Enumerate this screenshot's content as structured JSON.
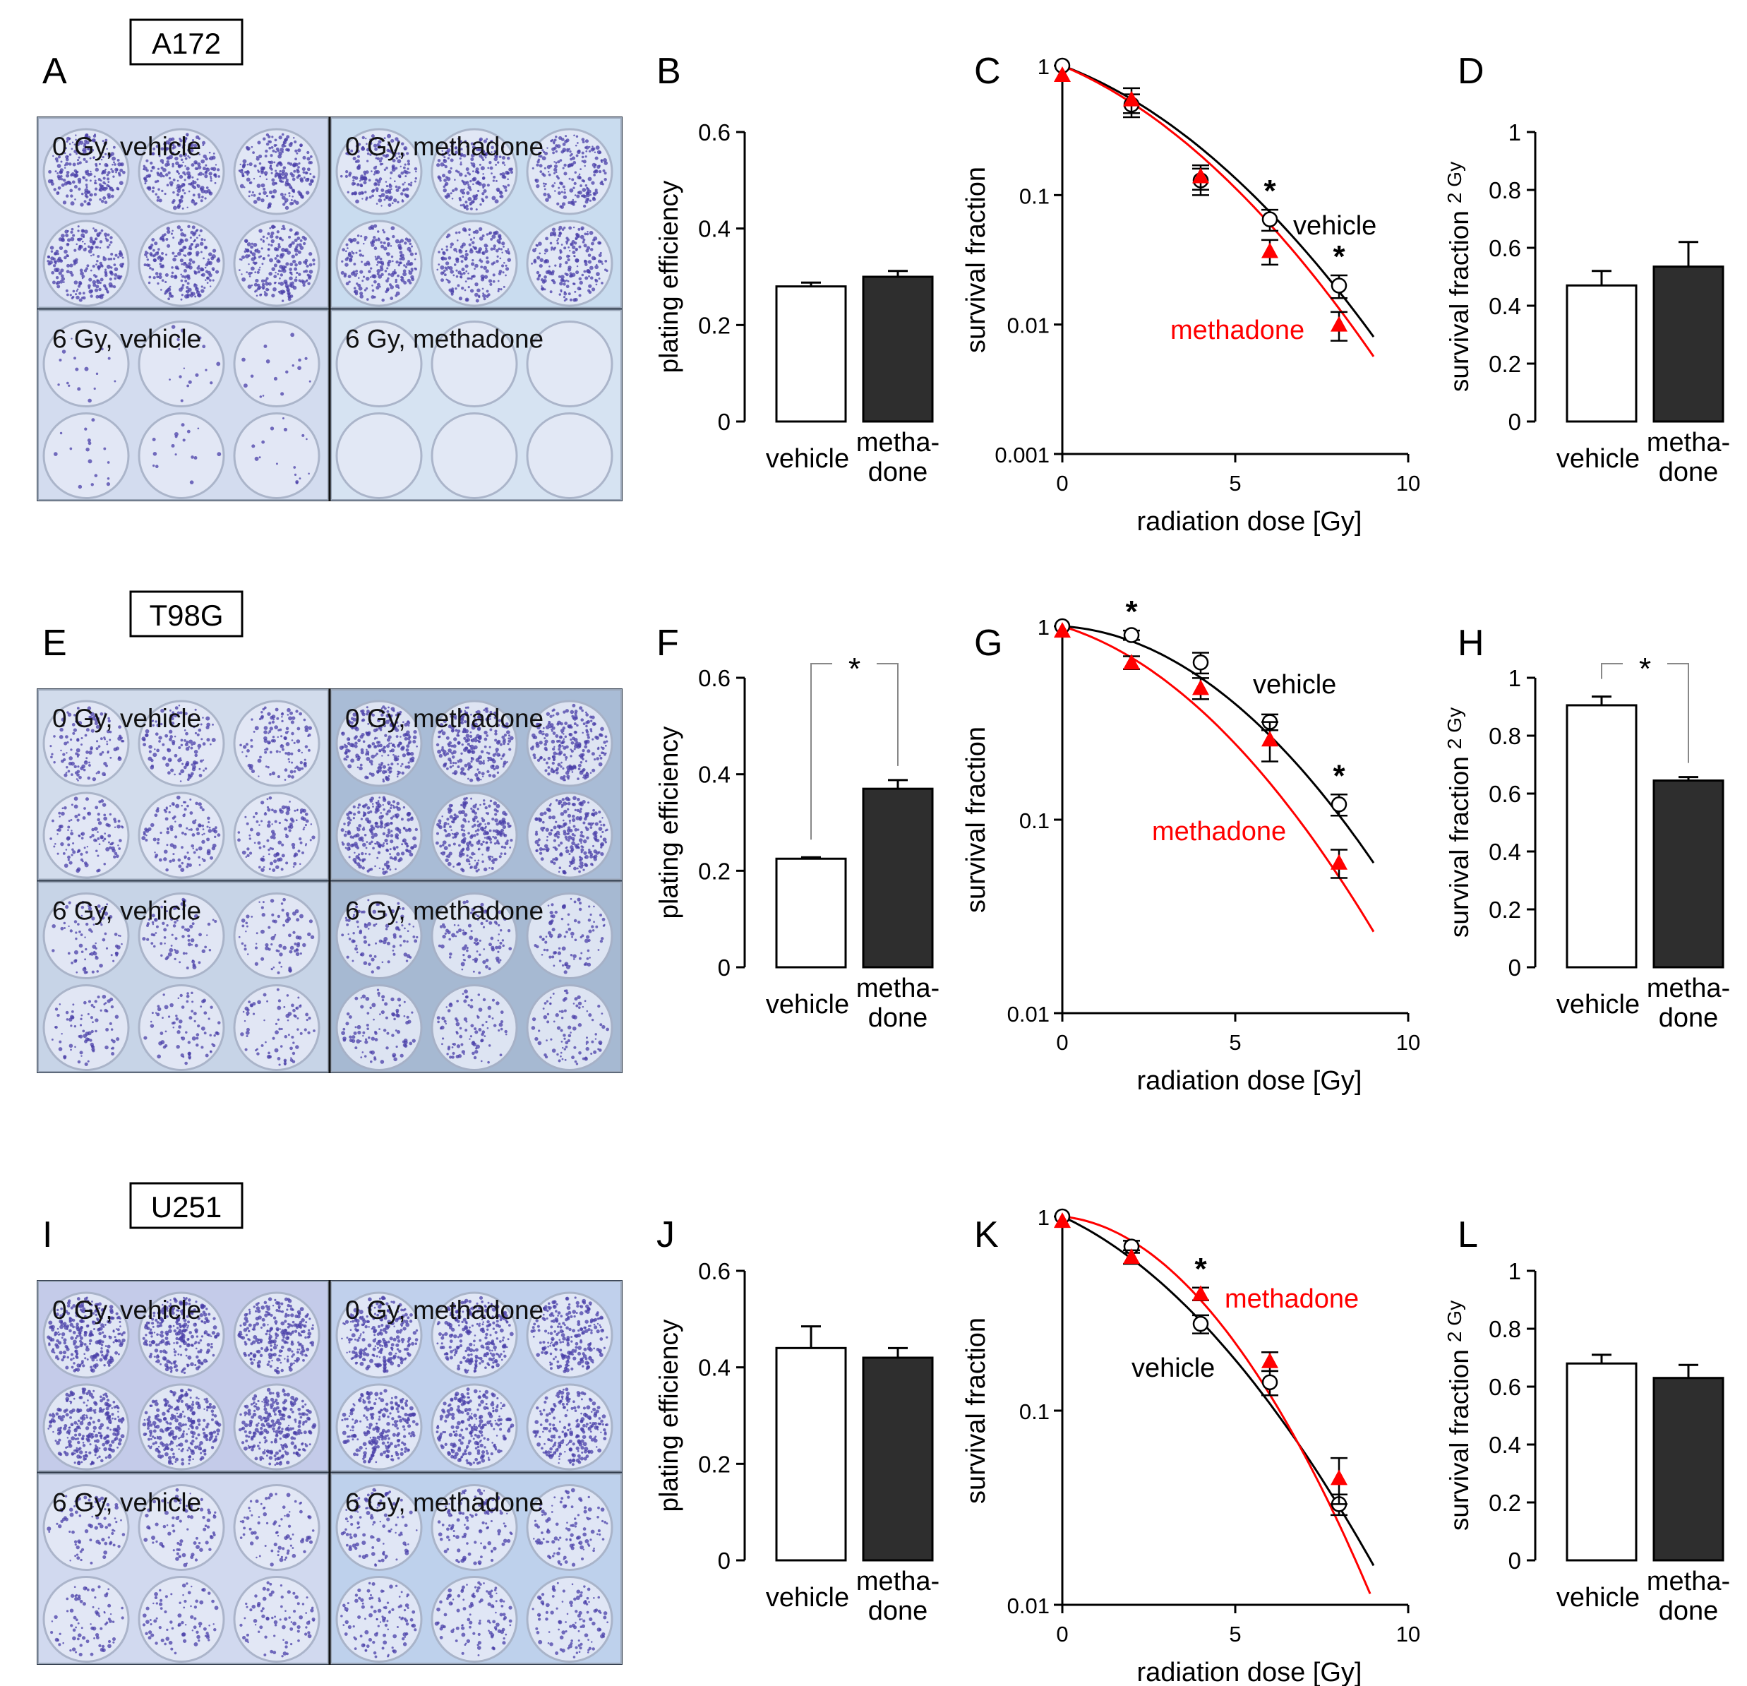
{
  "rows": [
    {
      "cell_line": "A172",
      "panel_letters": [
        "A",
        "B",
        "C",
        "D"
      ],
      "photo": {
        "labels": [
          "0 Gy, vehicle",
          "0 Gy, methadone",
          "6 Gy, vehicle",
          "6 Gy, methadone"
        ],
        "colony_density": [
          0.85,
          0.75,
          0.06,
          0.0
        ],
        "tint": [
          "#cfd8ee",
          "#c9dcef",
          "#d3dcef",
          "#d6e3f2"
        ]
      }
    },
    {
      "cell_line": "T98G",
      "panel_letters": [
        "E",
        "F",
        "G",
        "H"
      ],
      "photo": {
        "labels": [
          "0 Gy, vehicle",
          "0 Gy, methadone",
          "6 Gy, vehicle",
          "6 Gy, methadone"
        ],
        "colony_density": [
          0.45,
          0.9,
          0.3,
          0.35
        ],
        "tint": [
          "#d2dcec",
          "#a9bcd6",
          "#c7d4e7",
          "#a6b9d2"
        ]
      }
    },
    {
      "cell_line": "U251",
      "panel_letters": [
        "I",
        "J",
        "K",
        "L"
      ],
      "photo": {
        "labels": [
          "0 Gy, vehicle",
          "0 Gy, methadone",
          "6 Gy, vehicle",
          "6 Gy, methadone"
        ],
        "colony_density": [
          1.0,
          0.9,
          0.3,
          0.4
        ],
        "tint": [
          "#c4cbe9",
          "#c0d0ec",
          "#d1d9ef",
          "#bed1ec"
        ]
      }
    }
  ],
  "colors": {
    "vehicle": "#000000",
    "methadone": "#ff0000",
    "bar_vehicle": "#ffffff",
    "bar_methadone": "#2e2e2e",
    "colony": "#4a3fa8"
  },
  "chart_data": [
    {
      "panel": "B",
      "type": "bar",
      "categories": [
        "vehicle",
        "metha-done"
      ],
      "values": [
        0.28,
        0.3
      ],
      "errors": [
        0.008,
        0.012
      ],
      "ylabel": "plating efficiency",
      "ylim": [
        0,
        0.6
      ],
      "yticks": [
        "0",
        "0.2",
        "0.4",
        "0.6"
      ],
      "significance": ""
    },
    {
      "panel": "C",
      "type": "line",
      "yscale": "log",
      "xlabel": "radiation dose [Gy]",
      "ylabel": "survival fraction",
      "xlim": [
        0,
        10
      ],
      "ylim": [
        0.001,
        1
      ],
      "xticks": [
        "0",
        "5",
        "10"
      ],
      "yticks": [
        "0.001",
        "0.01",
        "0.1",
        "1"
      ],
      "series": [
        {
          "name": "vehicle",
          "x": [
            0,
            2,
            4,
            6,
            8
          ],
          "y": [
            1,
            0.5,
            0.13,
            0.065,
            0.02
          ],
          "errors": [
            0,
            0.1,
            0.03,
            0.012,
            0.004
          ],
          "marker": "circle"
        },
        {
          "name": "methadone",
          "x": [
            0,
            2,
            4,
            6,
            8
          ],
          "y": [
            0.85,
            0.55,
            0.14,
            0.037,
            0.01
          ],
          "errors": [
            0,
            0.12,
            0.03,
            0.008,
            0.0025
          ],
          "marker": "triangle"
        }
      ],
      "fits": [
        {
          "series": "vehicle",
          "alpha": 0.23,
          "beta": 0.034,
          "xmax": 9
        },
        {
          "series": "methadone",
          "alpha": 0.26,
          "beta": 0.035,
          "xmax": 9
        }
      ],
      "asterisks_at_x": [
        6,
        8
      ]
    },
    {
      "panel": "D",
      "type": "bar",
      "categories": [
        "vehicle",
        "metha-done"
      ],
      "values": [
        0.47,
        0.535
      ],
      "errors": [
        0.05,
        0.085
      ],
      "ylabel": "survival fraction",
      "ylabel_sub": "2 Gy",
      "ylim": [
        0,
        1
      ],
      "yticks": [
        "0",
        "0.2",
        "0.4",
        "0.6",
        "0.8",
        "1"
      ],
      "significance": ""
    },
    {
      "panel": "F",
      "type": "bar",
      "categories": [
        "vehicle",
        "metha-done"
      ],
      "values": [
        0.225,
        0.37
      ],
      "errors": [
        0.003,
        0.018
      ],
      "ylabel": "plating efficiency",
      "ylim": [
        0,
        0.6
      ],
      "yticks": [
        "0",
        "0.2",
        "0.4",
        "0.6"
      ],
      "significance": "*"
    },
    {
      "panel": "G",
      "type": "line",
      "yscale": "log",
      "xlabel": "radiation dose [Gy]",
      "ylabel": "survival fraction",
      "xlim": [
        0,
        10
      ],
      "ylim": [
        0.01,
        1
      ],
      "xticks": [
        "0",
        "5",
        "10"
      ],
      "yticks": [
        "0.01",
        "0.1",
        "1"
      ],
      "series": [
        {
          "name": "vehicle",
          "x": [
            0,
            2,
            4,
            6,
            8
          ],
          "y": [
            1,
            0.9,
            0.65,
            0.32,
            0.12
          ],
          "errors": [
            0,
            0.05,
            0.08,
            0.03,
            0.015
          ],
          "marker": "circle"
        },
        {
          "name": "methadone",
          "x": [
            0,
            2,
            4,
            6,
            8
          ],
          "y": [
            0.95,
            0.65,
            0.48,
            0.26,
            0.06
          ],
          "errors": [
            0,
            0.05,
            0.06,
            0.06,
            0.01
          ],
          "marker": "triangle"
        }
      ],
      "fits": [
        {
          "series": "vehicle",
          "alpha": 0.025,
          "beta": 0.032,
          "xmax": 9
        },
        {
          "series": "methadone",
          "alpha": 0.125,
          "beta": 0.031,
          "xmax": 9
        }
      ],
      "asterisks_at_x": [
        2,
        8
      ]
    },
    {
      "panel": "H",
      "type": "bar",
      "categories": [
        "vehicle",
        "metha-done"
      ],
      "values": [
        0.905,
        0.645
      ],
      "errors": [
        0.03,
        0.012
      ],
      "ylabel": "survival fraction",
      "ylabel_sub": "2 Gy",
      "ylim": [
        0,
        1
      ],
      "yticks": [
        "0",
        "0.2",
        "0.4",
        "0.6",
        "0.8",
        "1"
      ],
      "significance": "*"
    },
    {
      "panel": "J",
      "type": "bar",
      "categories": [
        "vehicle",
        "metha-done"
      ],
      "values": [
        0.44,
        0.42
      ],
      "errors": [
        0.045,
        0.02
      ],
      "ylabel": "plating efficiency",
      "ylim": [
        0,
        0.6
      ],
      "yticks": [
        "0",
        "0.2",
        "0.4",
        "0.6"
      ],
      "significance": ""
    },
    {
      "panel": "K",
      "type": "line",
      "yscale": "log",
      "xlabel": "radiation dose [Gy]",
      "ylabel": "survival fraction",
      "xlim": [
        0,
        10
      ],
      "ylim": [
        0.01,
        1
      ],
      "xticks": [
        "0",
        "5",
        "10"
      ],
      "yticks": [
        "0.01",
        "0.1",
        "1"
      ],
      "series": [
        {
          "name": "vehicle",
          "x": [
            0,
            2,
            4,
            6,
            8
          ],
          "y": [
            1,
            0.7,
            0.28,
            0.14,
            0.033
          ],
          "errors": [
            0,
            0.05,
            0.03,
            0.02,
            0.004
          ],
          "marker": "circle"
        },
        {
          "name": "methadone",
          "x": [
            0,
            2,
            4,
            6,
            8
          ],
          "y": [
            0.95,
            0.62,
            0.4,
            0.18,
            0.045
          ],
          "errors": [
            0,
            0.05,
            0.03,
            0.02,
            0.012
          ],
          "marker": "triangle"
        }
      ],
      "fits": [
        {
          "series": "vehicle",
          "alpha": 0.19,
          "beta": 0.03,
          "xmax": 9
        },
        {
          "series": "methadone",
          "alpha": 0.04,
          "beta": 0.052,
          "xmax": 8.9
        }
      ],
      "asterisks_at_x": [
        4
      ]
    },
    {
      "panel": "L",
      "type": "bar",
      "categories": [
        "vehicle",
        "metha-done"
      ],
      "values": [
        0.68,
        0.63
      ],
      "errors": [
        0.03,
        0.045
      ],
      "ylabel": "survival fraction",
      "ylabel_sub": "2 Gy",
      "ylim": [
        0,
        1
      ],
      "yticks": [
        "0",
        "0.2",
        "0.4",
        "0.6",
        "0.8",
        "1"
      ],
      "significance": ""
    }
  ]
}
